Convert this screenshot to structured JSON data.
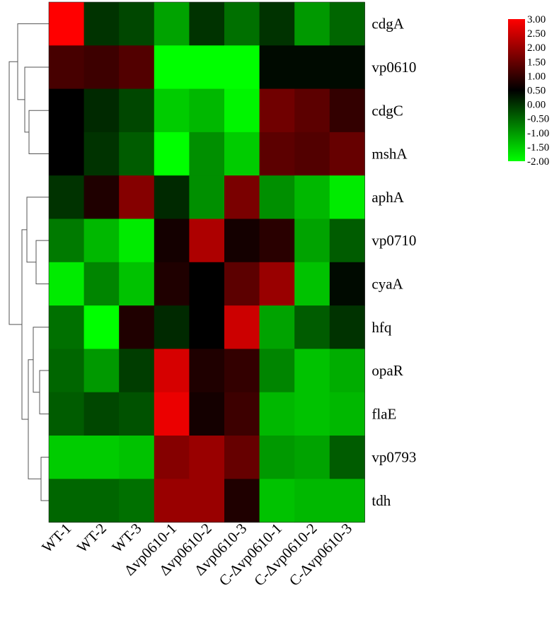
{
  "chart_data": {
    "type": "heatmap",
    "title": "",
    "rows": [
      "cdgA",
      "vp0610",
      "cdgC",
      "mshA",
      "aphA",
      "vp0710",
      "cyaA",
      "hfq",
      "opaR",
      "flaE",
      "vp0793",
      "tdh"
    ],
    "columns": [
      "WT-1",
      "WT-2",
      "WT-3",
      "Δvp0610-1",
      "Δvp0610-2",
      "Δvp0610-3",
      "C-Δvp0610-1",
      "C-Δvp0610-2",
      "C-Δvp0610-3"
    ],
    "values": [
      [
        3.0,
        0.0,
        -0.2,
        -1.1,
        0.0,
        -0.6,
        0.0,
        -1.0,
        -0.5
      ],
      [
        1.2,
        1.1,
        1.3,
        -2.0,
        -2.0,
        -2.0,
        0.4,
        0.4,
        0.4
      ],
      [
        0.5,
        0.1,
        -0.2,
        -1.5,
        -1.3,
        -1.9,
        1.6,
        1.4,
        1.0
      ],
      [
        0.5,
        0.0,
        -0.4,
        -2.0,
        -0.9,
        -1.5,
        1.4,
        1.3,
        1.5
      ],
      [
        0.0,
        0.8,
        1.8,
        0.1,
        -0.9,
        1.7,
        -0.9,
        -1.3,
        -1.8
      ],
      [
        -0.7,
        -1.3,
        -1.8,
        0.7,
        2.2,
        0.7,
        0.9,
        -1.1,
        -0.4
      ],
      [
        -1.8,
        -0.8,
        -1.4,
        0.8,
        0.5,
        1.4,
        2.0,
        -1.4,
        0.4
      ],
      [
        -0.6,
        -2.0,
        0.8,
        0.1,
        0.5,
        2.5,
        -1.1,
        -0.4,
        0.0
      ],
      [
        -0.5,
        -1.0,
        -0.1,
        2.6,
        0.8,
        1.0,
        -0.8,
        -1.4,
        -1.2
      ],
      [
        -0.4,
        -0.2,
        -0.3,
        2.8,
        0.7,
        1.1,
        -1.3,
        -1.4,
        -1.3
      ],
      [
        -1.5,
        -1.5,
        -1.4,
        1.8,
        2.0,
        1.5,
        -1.0,
        -1.1,
        -0.4
      ],
      [
        -0.5,
        -0.5,
        -0.6,
        2.0,
        2.0,
        0.8,
        -1.4,
        -1.3,
        -1.3
      ]
    ],
    "colorbar": {
      "min": -2.0,
      "max": 3.0,
      "ticks": [
        "3.00",
        "2.50",
        "2.00",
        "1.50",
        "1.00",
        "0.50",
        "0.00",
        "-0.50",
        "-1.00",
        "-1.50",
        "-2.00"
      ],
      "low_color": "#00ff00",
      "mid_color": "#000000",
      "high_color": "#ff0000",
      "mid_value": 0.5
    },
    "dendrogram": "row clustering tree on left",
    "grid": false,
    "legend_position": "top-right"
  }
}
